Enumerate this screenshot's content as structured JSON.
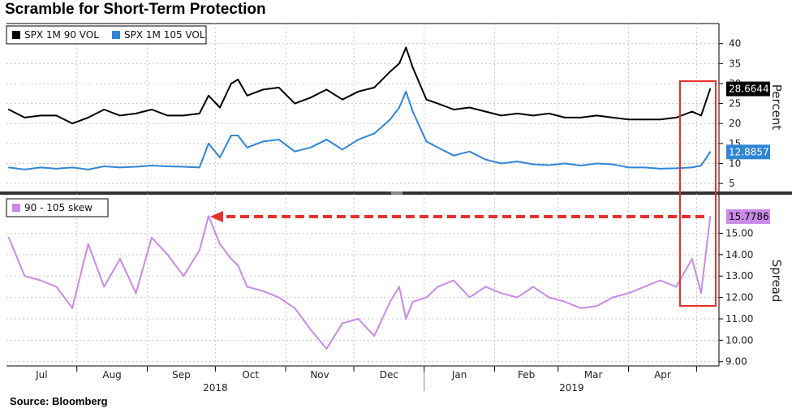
{
  "title": "Scramble for Short-Term Protection",
  "source": "Source:  Bloomberg",
  "chart_data": [
    {
      "type": "line",
      "panel": "top",
      "ylabel": "Percent",
      "ylim": [
        3,
        44
      ],
      "yticks": [
        5,
        10,
        15,
        20,
        25,
        30,
        35,
        40
      ],
      "legend_placement": "top-left",
      "x": [
        "2018-07-02",
        "2018-07-09",
        "2018-07-16",
        "2018-07-23",
        "2018-07-30",
        "2018-08-06",
        "2018-08-13",
        "2018-08-20",
        "2018-08-27",
        "2018-09-03",
        "2018-09-10",
        "2018-09-17",
        "2018-09-24",
        "2018-09-28",
        "2018-10-03",
        "2018-10-08",
        "2018-10-11",
        "2018-10-15",
        "2018-10-22",
        "2018-10-29",
        "2018-11-05",
        "2018-11-12",
        "2018-11-19",
        "2018-11-26",
        "2018-12-03",
        "2018-12-10",
        "2018-12-17",
        "2018-12-21",
        "2018-12-24",
        "2018-12-27",
        "2019-01-02",
        "2019-01-07",
        "2019-01-14",
        "2019-01-21",
        "2019-01-28",
        "2019-02-04",
        "2019-02-11",
        "2019-02-18",
        "2019-02-25",
        "2019-03-04",
        "2019-03-11",
        "2019-03-18",
        "2019-03-25",
        "2019-04-01",
        "2019-04-08",
        "2019-04-15",
        "2019-04-22",
        "2019-04-29",
        "2019-05-03",
        "2019-05-07"
      ],
      "series": [
        {
          "name": "SPX 1M 90 VOL",
          "color": "#000000",
          "last_value": "28.6644",
          "values": [
            23.5,
            21.5,
            22,
            22,
            20,
            21.5,
            23.5,
            22,
            22.5,
            23.5,
            22,
            22,
            22.5,
            27,
            24,
            30,
            31,
            27,
            28.5,
            29,
            25,
            26.5,
            28.5,
            26,
            28,
            29,
            33,
            35,
            39,
            34,
            26,
            25,
            23.5,
            24,
            23,
            22,
            22.5,
            22,
            22.5,
            21.5,
            21.5,
            22,
            21.5,
            21,
            21,
            21,
            21.5,
            23,
            22,
            28.6644
          ]
        },
        {
          "name": "SPX 1M 105 VOL",
          "color": "#2f86d6",
          "last_value": "12.8857",
          "values": [
            9,
            8.5,
            9,
            8.7,
            9,
            8.5,
            9.3,
            9,
            9.2,
            9.5,
            9.3,
            9.2,
            9,
            15,
            11.5,
            17,
            17,
            14,
            15.5,
            16,
            13,
            14,
            16,
            13.5,
            16,
            17.5,
            21,
            24,
            28,
            23,
            15.5,
            14,
            12,
            13,
            11,
            10,
            10.5,
            9.8,
            9.6,
            10,
            9.5,
            10,
            9.8,
            9,
            9,
            8.7,
            8.8,
            9,
            9.5,
            12.8857
          ]
        }
      ]
    },
    {
      "type": "line",
      "panel": "bottom",
      "ylabel": "Spread",
      "ylim": [
        8.8,
        16.8
      ],
      "yticks": [
        "9.00",
        "10.00",
        "11.00",
        "12.00",
        "13.00",
        "14.00",
        "15.00"
      ],
      "legend_placement": "top-left",
      "annotation": "horizontal red dashed arrow from the latest skew reading back to the September 2018 peak; red box around the latest readings",
      "x": [
        "2018-07-02",
        "2018-07-09",
        "2018-07-16",
        "2018-07-23",
        "2018-07-30",
        "2018-08-06",
        "2018-08-13",
        "2018-08-20",
        "2018-08-27",
        "2018-09-03",
        "2018-09-10",
        "2018-09-17",
        "2018-09-24",
        "2018-09-28",
        "2018-10-03",
        "2018-10-08",
        "2018-10-11",
        "2018-10-15",
        "2018-10-22",
        "2018-10-29",
        "2018-11-05",
        "2018-11-12",
        "2018-11-19",
        "2018-11-26",
        "2018-12-03",
        "2018-12-10",
        "2018-12-17",
        "2018-12-21",
        "2018-12-24",
        "2018-12-27",
        "2019-01-02",
        "2019-01-07",
        "2019-01-14",
        "2019-01-21",
        "2019-01-28",
        "2019-02-04",
        "2019-02-11",
        "2019-02-18",
        "2019-02-25",
        "2019-03-04",
        "2019-03-11",
        "2019-03-18",
        "2019-03-25",
        "2019-04-01",
        "2019-04-08",
        "2019-04-15",
        "2019-04-22",
        "2019-04-29",
        "2019-05-03",
        "2019-05-07"
      ],
      "series": [
        {
          "name": "90 - 105 skew",
          "color": "#c98ae8",
          "last_value": "15.7786",
          "values": [
            14.8,
            13,
            12.8,
            12.5,
            11.5,
            14.5,
            12.5,
            13.8,
            12.2,
            14.8,
            14,
            13,
            14.2,
            15.8,
            14.5,
            13.8,
            13.5,
            12.5,
            12.3,
            12,
            11.5,
            10.5,
            9.6,
            10.8,
            11,
            10.2,
            11.8,
            12.5,
            11,
            11.8,
            12,
            12.5,
            12.8,
            12,
            12.5,
            12.2,
            12,
            12.5,
            12,
            11.8,
            11.5,
            11.6,
            12,
            12.2,
            12.5,
            12.8,
            12.5,
            13.8,
            12.2,
            15.7786
          ]
        }
      ]
    }
  ],
  "x_axis": {
    "months": [
      "Jul",
      "Aug",
      "Sep",
      "Oct",
      "Nov",
      "Dec",
      "Jan",
      "Feb",
      "Mar",
      "Apr"
    ],
    "years": [
      "2018",
      "2019"
    ]
  }
}
